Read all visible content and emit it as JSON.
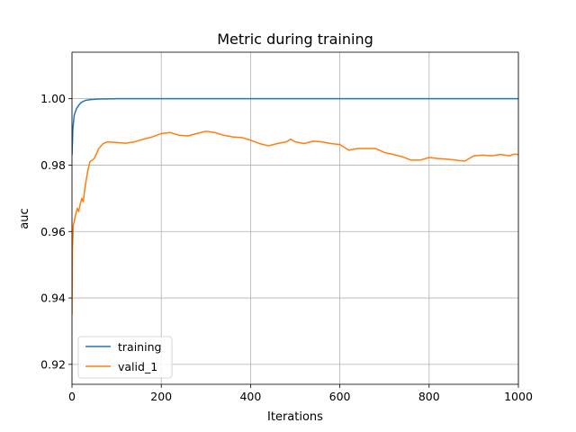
{
  "chart_data": {
    "type": "line",
    "title": "Metric during training",
    "xlabel": "Iterations",
    "ylabel": "auc",
    "xlim": [
      0,
      1000
    ],
    "ylim": [
      0.914,
      1.014
    ],
    "xticks": [
      0,
      200,
      400,
      600,
      800,
      1000
    ],
    "xtick_labels": [
      "0",
      "200",
      "400",
      "600",
      "800",
      "1000"
    ],
    "yticks": [
      0.92,
      0.94,
      0.96,
      0.98,
      1.0
    ],
    "ytick_labels": [
      "0.92",
      "0.94",
      "0.96",
      "0.98",
      "1.00"
    ],
    "grid": true,
    "legend_position": "lower-left",
    "series": [
      {
        "name": "training",
        "color": "#1f77b4",
        "x": [
          0,
          2,
          5,
          10,
          15,
          20,
          30,
          40,
          60,
          100,
          200,
          300,
          400,
          500,
          600,
          700,
          800,
          900,
          1000
        ],
        "y": [
          0.983,
          0.991,
          0.995,
          0.997,
          0.998,
          0.9988,
          0.9995,
          0.9997,
          0.9999,
          1.0,
          1.0,
          1.0,
          1.0,
          1.0,
          1.0,
          1.0,
          1.0,
          1.0,
          1.0
        ]
      },
      {
        "name": "valid_1",
        "color": "#ff7f0e",
        "x": [
          0,
          1,
          3,
          5,
          8,
          12,
          15,
          18,
          22,
          25,
          30,
          35,
          40,
          45,
          50,
          60,
          70,
          80,
          100,
          120,
          140,
          160,
          180,
          200,
          220,
          240,
          260,
          280,
          300,
          320,
          340,
          360,
          380,
          400,
          420,
          440,
          460,
          480,
          490,
          500,
          520,
          540,
          560,
          580,
          600,
          620,
          640,
          660,
          680,
          700,
          720,
          740,
          760,
          780,
          800,
          820,
          840,
          860,
          880,
          900,
          920,
          940,
          960,
          980,
          990,
          1000
        ],
        "y": [
          0.935,
          0.955,
          0.962,
          0.963,
          0.965,
          0.967,
          0.966,
          0.968,
          0.97,
          0.969,
          0.974,
          0.978,
          0.981,
          0.9815,
          0.982,
          0.985,
          0.9865,
          0.987,
          0.9868,
          0.9866,
          0.987,
          0.9878,
          0.9885,
          0.9895,
          0.9898,
          0.989,
          0.9888,
          0.9895,
          0.9902,
          0.9898,
          0.989,
          0.9885,
          0.9883,
          0.9875,
          0.9865,
          0.9858,
          0.9865,
          0.987,
          0.9878,
          0.987,
          0.9865,
          0.9872,
          0.987,
          0.9865,
          0.9862,
          0.9845,
          0.985,
          0.985,
          0.985,
          0.9838,
          0.9832,
          0.9825,
          0.9815,
          0.9815,
          0.9823,
          0.982,
          0.9818,
          0.9815,
          0.9812,
          0.9828,
          0.983,
          0.9828,
          0.9832,
          0.9828,
          0.9833,
          0.9832
        ]
      }
    ]
  }
}
